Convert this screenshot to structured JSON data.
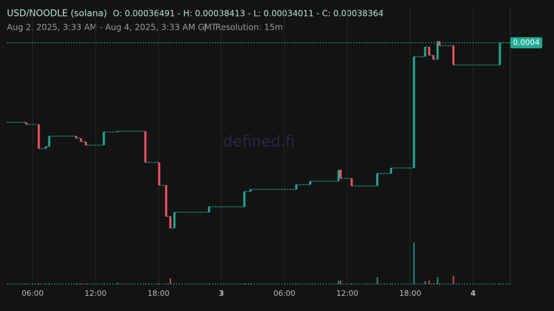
{
  "chart_data": {
    "type": "candlestick",
    "header": {
      "symbol": "USD/NOODLE (solana)",
      "ohlc": "O: 0.00036491 - H: 0.00038413 - L: 0.00034011 - C: 0.00038364",
      "range": "Aug 2, 2025, 3:33 AM - Aug 4, 2025, 3:33 AM GMT",
      "separator": "|",
      "resolution": "Resolution: 15m"
    },
    "watermark": "defined.fi",
    "up_color": "#22ab94",
    "down_color": "#f7525f",
    "xlim": [
      3.55,
      51.55
    ],
    "xticks": [
      {
        "value": 6,
        "label": "06:00"
      },
      {
        "value": 12,
        "label": "12:00"
      },
      {
        "value": 18,
        "label": "18:00"
      },
      {
        "value": 24,
        "label": "3"
      },
      {
        "value": 30,
        "label": "06:00"
      },
      {
        "value": 36,
        "label": "12:00"
      },
      {
        "value": 42,
        "label": "18:00"
      },
      {
        "value": 48,
        "label": "4"
      }
    ],
    "ylim": [
      0.000179,
      0.000414
    ],
    "last_price": {
      "value": 0.00038364,
      "label": "0.0004"
    },
    "volume_lim": [
      0,
      100
    ],
    "x": [
      5.4,
      6.59,
      7.25,
      7.58,
      10.15,
      10.61,
      11.07,
      12.79,
      14.11,
      16.75,
      18.07,
      18.73,
      19.13,
      19.52,
      22.82,
      26.19,
      26.78,
      31.14,
      32.46,
      35.17,
      35.37,
      36.42,
      38.86,
      40.18,
      42.36,
      43.42,
      43.81,
      44.21,
      44.61,
      44.8,
      46.12,
      50.55
    ],
    "open": [
      0.00031636,
      0.00031461,
      0.00029414,
      0.00029589,
      0.00030467,
      0.00030291,
      0.00029998,
      0.00029706,
      0.00030818,
      0.00030876,
      0.00028244,
      0.00026313,
      0.0002368,
      0.00022686,
      0.00024031,
      0.00024499,
      0.00025787,
      0.00025962,
      0.00026372,
      0.00026664,
      0.000276,
      0.00026898,
      0.00026255,
      0.00027308,
      0.00027776,
      0.00037194,
      0.00038013,
      0.00037311,
      0.0003696,
      0.00038481,
      0.0003813,
      0.00036491
    ],
    "close": [
      0.00031461,
      0.00029414,
      0.00029589,
      0.00030467,
      0.00030291,
      0.00029998,
      0.00029706,
      0.00030818,
      0.00030876,
      0.00028244,
      0.00026313,
      0.0002368,
      0.00022686,
      0.00024031,
      0.00024499,
      0.00025787,
      0.00025962,
      0.00026372,
      0.00026664,
      0.000276,
      0.00026898,
      0.00026255,
      0.00027308,
      0.00027776,
      0.00037194,
      0.00038013,
      0.00037311,
      0.0003696,
      0.00038481,
      0.0003813,
      0.00036491,
      0.00038364
    ],
    "volume": [
      1,
      1,
      1,
      1,
      1,
      1,
      1,
      1,
      2,
      1,
      1,
      1,
      8,
      1,
      1,
      1,
      1,
      1,
      1,
      5,
      5,
      1,
      10,
      1,
      60,
      4,
      5,
      1,
      10,
      1,
      12,
      1
    ]
  }
}
